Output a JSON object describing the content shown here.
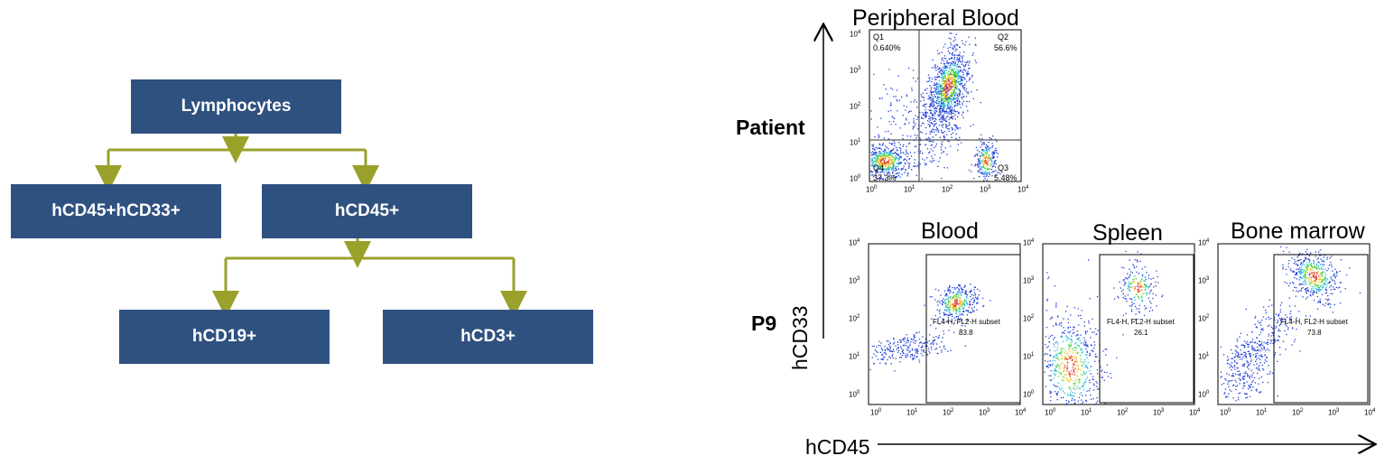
{
  "flow": {
    "root": "Lymphocytes",
    "left_child": "hCD45+hCD33+",
    "right_child": "hCD45+",
    "grand_left": "hCD19+",
    "grand_right": "hCD3+",
    "box_color": "#2f5180",
    "connector_color": "#9aa12a"
  },
  "flow_rows": {
    "patient": "Patient",
    "p9": "P9"
  },
  "axes": {
    "y_title": "hCD33",
    "x_title": "hCD45"
  },
  "patient_plot": {
    "title": "Peripheral Blood",
    "quadrants": {
      "q1": {
        "name": "Q1",
        "value": "0.640%"
      },
      "q2": {
        "name": "Q2",
        "value": "56.6%"
      },
      "q3": {
        "name": "Q3",
        "value": "5.48%"
      },
      "q4": {
        "name": "Q4",
        "value": "37.3%"
      }
    }
  },
  "p9_plots": [
    {
      "title": "Blood",
      "gate_label": "FL4-H, FL2-H subset",
      "gate_value": "83.8"
    },
    {
      "title": "Spleen",
      "gate_label": "FL4-H, FL2-H subset",
      "gate_value": "26.1"
    },
    {
      "title": "Bone marrow",
      "gate_label": "FL4-H, FL2-H subset",
      "gate_value": "73.8"
    }
  ],
  "tick_labels": [
    "10",
    "10",
    "10",
    "10",
    "10"
  ],
  "tick_exponents": [
    "0",
    "1",
    "2",
    "3",
    "4"
  ]
}
